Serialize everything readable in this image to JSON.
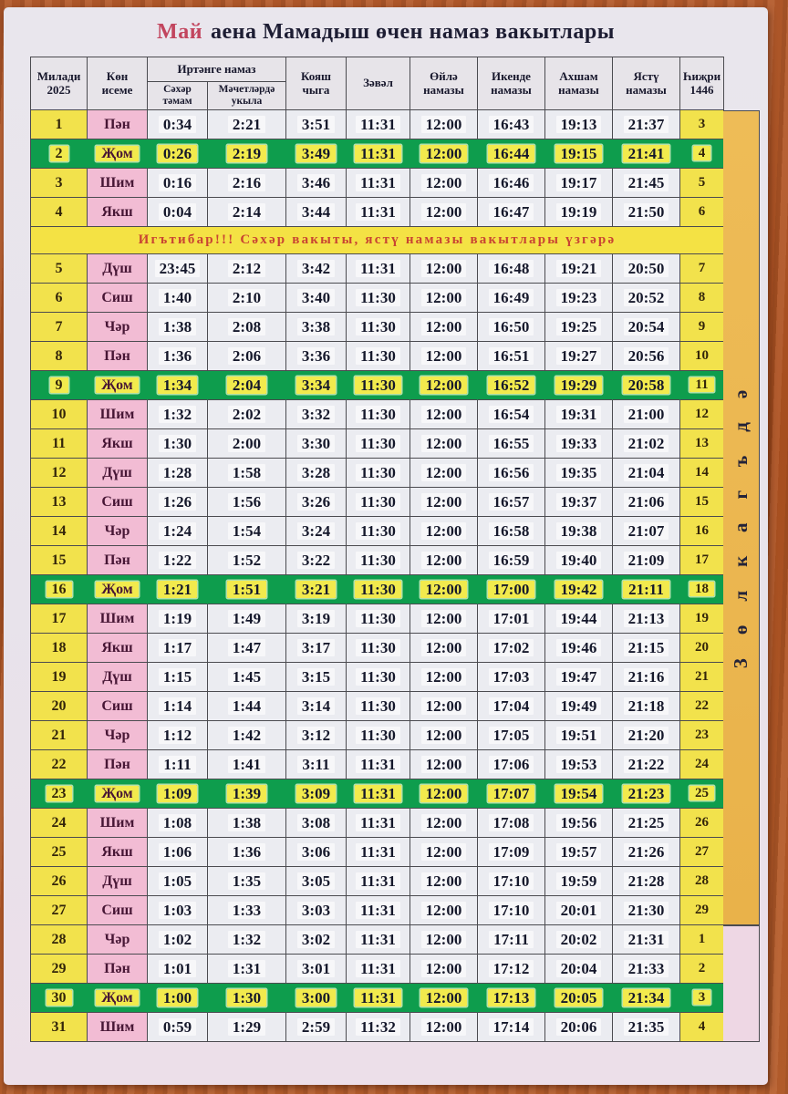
{
  "title": {
    "month": "Май",
    "rest": "аена Мамадыш өчен намаз вакытлары"
  },
  "table": {
    "headers": {
      "miladi": [
        "Милади",
        "2025"
      ],
      "day": [
        "Көн",
        "исеме"
      ],
      "morning_group": "Иртәнге намаз",
      "sahar": "Сәхәр тәмам",
      "mosque": [
        "Мәчетләрдә",
        "укыла"
      ],
      "sunrise": [
        "Кояш",
        "чыга"
      ],
      "zawal": "Зәвәл",
      "oyla": [
        "Өйлә",
        "намазы"
      ],
      "ikende": [
        "Икенде",
        "намазы"
      ],
      "akhsham": [
        "Ахшам",
        "намазы"
      ],
      "yastu": [
        "Ястү",
        "намазы"
      ],
      "hijri": [
        "Һиҗри",
        "1446"
      ]
    },
    "notice": {
      "text": "Игътибар!!! Сәхәр вакыты, ястү намазы вакытлары үзгәрә",
      "after_date": 4
    },
    "rows": [
      {
        "date": "1",
        "day": "Пән",
        "times": [
          "0:34",
          "2:21",
          "3:51",
          "11:31",
          "12:00",
          "16:43",
          "19:13",
          "21:37"
        ],
        "hijri": "3",
        "friday": false
      },
      {
        "date": "2",
        "day": "Җом",
        "times": [
          "0:26",
          "2:19",
          "3:49",
          "11:31",
          "12:00",
          "16:44",
          "19:15",
          "21:41"
        ],
        "hijri": "4",
        "friday": true
      },
      {
        "date": "3",
        "day": "Шим",
        "times": [
          "0:16",
          "2:16",
          "3:46",
          "11:31",
          "12:00",
          "16:46",
          "19:17",
          "21:45"
        ],
        "hijri": "5",
        "friday": false
      },
      {
        "date": "4",
        "day": "Якш",
        "times": [
          "0:04",
          "2:14",
          "3:44",
          "11:31",
          "12:00",
          "16:47",
          "19:19",
          "21:50"
        ],
        "hijri": "6",
        "friday": false
      },
      {
        "date": "5",
        "day": "Дүш",
        "times": [
          "23:45",
          "2:12",
          "3:42",
          "11:31",
          "12:00",
          "16:48",
          "19:21",
          "20:50"
        ],
        "hijri": "7",
        "friday": false
      },
      {
        "date": "6",
        "day": "Сиш",
        "times": [
          "1:40",
          "2:10",
          "3:40",
          "11:30",
          "12:00",
          "16:49",
          "19:23",
          "20:52"
        ],
        "hijri": "8",
        "friday": false
      },
      {
        "date": "7",
        "day": "Чәр",
        "times": [
          "1:38",
          "2:08",
          "3:38",
          "11:30",
          "12:00",
          "16:50",
          "19:25",
          "20:54"
        ],
        "hijri": "9",
        "friday": false
      },
      {
        "date": "8",
        "day": "Пән",
        "times": [
          "1:36",
          "2:06",
          "3:36",
          "11:30",
          "12:00",
          "16:51",
          "19:27",
          "20:56"
        ],
        "hijri": "10",
        "friday": false
      },
      {
        "date": "9",
        "day": "Җом",
        "times": [
          "1:34",
          "2:04",
          "3:34",
          "11:30",
          "12:00",
          "16:52",
          "19:29",
          "20:58"
        ],
        "hijri": "11",
        "friday": true
      },
      {
        "date": "10",
        "day": "Шим",
        "times": [
          "1:32",
          "2:02",
          "3:32",
          "11:30",
          "12:00",
          "16:54",
          "19:31",
          "21:00"
        ],
        "hijri": "12",
        "friday": false
      },
      {
        "date": "11",
        "day": "Якш",
        "times": [
          "1:30",
          "2:00",
          "3:30",
          "11:30",
          "12:00",
          "16:55",
          "19:33",
          "21:02"
        ],
        "hijri": "13",
        "friday": false
      },
      {
        "date": "12",
        "day": "Дүш",
        "times": [
          "1:28",
          "1:58",
          "3:28",
          "11:30",
          "12:00",
          "16:56",
          "19:35",
          "21:04"
        ],
        "hijri": "14",
        "friday": false
      },
      {
        "date": "13",
        "day": "Сиш",
        "times": [
          "1:26",
          "1:56",
          "3:26",
          "11:30",
          "12:00",
          "16:57",
          "19:37",
          "21:06"
        ],
        "hijri": "15",
        "friday": false
      },
      {
        "date": "14",
        "day": "Чәр",
        "times": [
          "1:24",
          "1:54",
          "3:24",
          "11:30",
          "12:00",
          "16:58",
          "19:38",
          "21:07"
        ],
        "hijri": "16",
        "friday": false
      },
      {
        "date": "15",
        "day": "Пән",
        "times": [
          "1:22",
          "1:52",
          "3:22",
          "11:30",
          "12:00",
          "16:59",
          "19:40",
          "21:09"
        ],
        "hijri": "17",
        "friday": false
      },
      {
        "date": "16",
        "day": "Җом",
        "times": [
          "1:21",
          "1:51",
          "3:21",
          "11:30",
          "12:00",
          "17:00",
          "19:42",
          "21:11"
        ],
        "hijri": "18",
        "friday": true
      },
      {
        "date": "17",
        "day": "Шим",
        "times": [
          "1:19",
          "1:49",
          "3:19",
          "11:30",
          "12:00",
          "17:01",
          "19:44",
          "21:13"
        ],
        "hijri": "19",
        "friday": false
      },
      {
        "date": "18",
        "day": "Якш",
        "times": [
          "1:17",
          "1:47",
          "3:17",
          "11:30",
          "12:00",
          "17:02",
          "19:46",
          "21:15"
        ],
        "hijri": "20",
        "friday": false
      },
      {
        "date": "19",
        "day": "Дүш",
        "times": [
          "1:15",
          "1:45",
          "3:15",
          "11:30",
          "12:00",
          "17:03",
          "19:47",
          "21:16"
        ],
        "hijri": "21",
        "friday": false
      },
      {
        "date": "20",
        "day": "Сиш",
        "times": [
          "1:14",
          "1:44",
          "3:14",
          "11:30",
          "12:00",
          "17:04",
          "19:49",
          "21:18"
        ],
        "hijri": "22",
        "friday": false
      },
      {
        "date": "21",
        "day": "Чәр",
        "times": [
          "1:12",
          "1:42",
          "3:12",
          "11:30",
          "12:00",
          "17:05",
          "19:51",
          "21:20"
        ],
        "hijri": "23",
        "friday": false
      },
      {
        "date": "22",
        "day": "Пән",
        "times": [
          "1:11",
          "1:41",
          "3:11",
          "11:31",
          "12:00",
          "17:06",
          "19:53",
          "21:22"
        ],
        "hijri": "24",
        "friday": false
      },
      {
        "date": "23",
        "day": "Җом",
        "times": [
          "1:09",
          "1:39",
          "3:09",
          "11:31",
          "12:00",
          "17:07",
          "19:54",
          "21:23"
        ],
        "hijri": "25",
        "friday": true
      },
      {
        "date": "24",
        "day": "Шим",
        "times": [
          "1:08",
          "1:38",
          "3:08",
          "11:31",
          "12:00",
          "17:08",
          "19:56",
          "21:25"
        ],
        "hijri": "26",
        "friday": false
      },
      {
        "date": "25",
        "day": "Якш",
        "times": [
          "1:06",
          "1:36",
          "3:06",
          "11:31",
          "12:00",
          "17:09",
          "19:57",
          "21:26"
        ],
        "hijri": "27",
        "friday": false
      },
      {
        "date": "26",
        "day": "Дүш",
        "times": [
          "1:05",
          "1:35",
          "3:05",
          "11:31",
          "12:00",
          "17:10",
          "19:59",
          "21:28"
        ],
        "hijri": "28",
        "friday": false
      },
      {
        "date": "27",
        "day": "Сиш",
        "times": [
          "1:03",
          "1:33",
          "3:03",
          "11:31",
          "12:00",
          "17:10",
          "20:01",
          "21:30"
        ],
        "hijri": "29",
        "friday": false
      },
      {
        "date": "28",
        "day": "Чәр",
        "times": [
          "1:02",
          "1:32",
          "3:02",
          "11:31",
          "12:00",
          "17:11",
          "20:02",
          "21:31"
        ],
        "hijri": "1",
        "friday": false
      },
      {
        "date": "29",
        "day": "Пән",
        "times": [
          "1:01",
          "1:31",
          "3:01",
          "11:31",
          "12:00",
          "17:12",
          "20:04",
          "21:33"
        ],
        "hijri": "2",
        "friday": false
      },
      {
        "date": "30",
        "day": "Җом",
        "times": [
          "1:00",
          "1:30",
          "3:00",
          "11:31",
          "12:00",
          "17:13",
          "20:05",
          "21:34"
        ],
        "hijri": "3",
        "friday": true
      },
      {
        "date": "31",
        "day": "Шим",
        "times": [
          "0:59",
          "1:29",
          "2:59",
          "11:32",
          "12:00",
          "17:14",
          "20:06",
          "21:35"
        ],
        "hijri": "4",
        "friday": false
      }
    ]
  },
  "side_strip": {
    "hijri_month_label": "Зөлкагъдә"
  },
  "colors": {
    "wood_background": "#b45a2b",
    "page": "#e9e6ed",
    "yellow_cell": "#f2e24c",
    "pink_cell": "#f2bcd4",
    "time_cell": "#ebecf1",
    "friday_green": "#0e9d4d",
    "friday_chip_yellow": "#f2ea4d",
    "notice_yellow": "#f4e244",
    "notice_red": "#c94432",
    "title_accent_red": "#c2455e",
    "strip_orange": "#ebb64f",
    "strip_pink": "#eed7e4"
  }
}
